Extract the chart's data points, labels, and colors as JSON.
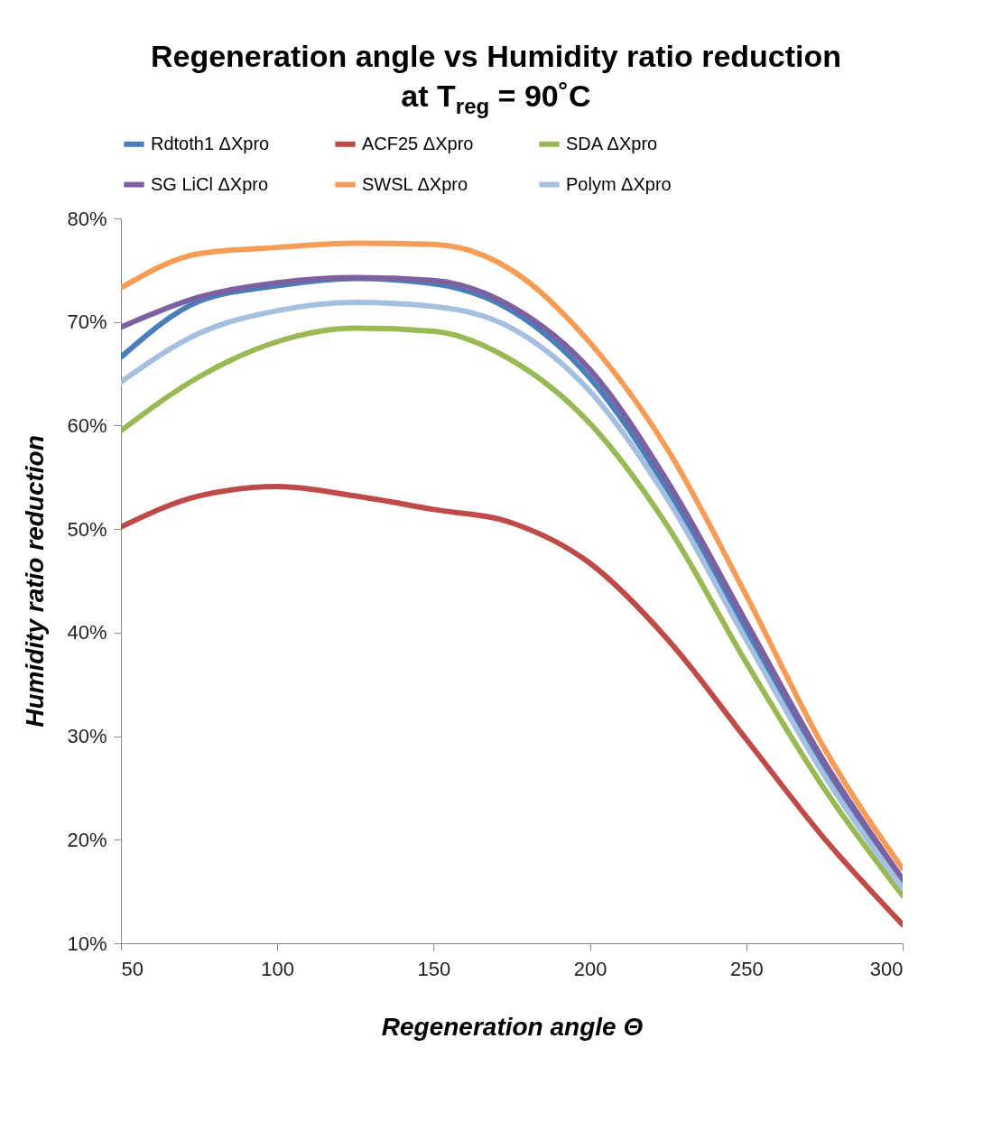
{
  "chart_data": {
    "type": "line",
    "title": "Regeneration angle vs Humidity ratio reduction",
    "subtitle": "at T$_{reg}$ = 90˚C",
    "xlabel": "Regeneration angle Θ",
    "ylabel": "Humidity ratio reduction",
    "x": [
      50,
      75,
      100,
      125,
      150,
      175,
      200,
      225,
      250,
      275,
      300
    ],
    "series": [
      {
        "name": "Rdtoth1 ΔXpro",
        "color": "#4a7ebb",
        "values": [
          66.6,
          72,
          73.5,
          74.2,
          73.7,
          71.1,
          64.6,
          53.7,
          40.2,
          26.8,
          15.8
        ]
      },
      {
        "name": "ACF25 ΔXpro",
        "color": "#be4b48",
        "values": [
          50.2,
          53.2,
          54.1,
          53.2,
          51.9,
          50.6,
          46.7,
          39.3,
          29.7,
          20.1,
          11.8
        ]
      },
      {
        "name": "SDA ΔXpro",
        "color": "#98b954",
        "values": [
          59.5,
          64.7,
          68.1,
          69.4,
          69.1,
          66.3,
          60.2,
          50.2,
          37.1,
          24.9,
          14.6
        ]
      },
      {
        "name": "SG LiCl ΔXpro",
        "color": "#7d60a0",
        "values": [
          69.5,
          72.4,
          73.8,
          74.3,
          74,
          71.5,
          65.4,
          54.5,
          41,
          27.5,
          16.2
        ]
      },
      {
        "name": "SWSL ΔXpro",
        "color": "#f59d56",
        "values": [
          73.3,
          76.6,
          77.2,
          77.6,
          77.5,
          75,
          68,
          57.6,
          43.6,
          28.8,
          17.2
        ]
      },
      {
        "name": "Polym ΔXpro",
        "color": "#a5bfe0",
        "values": [
          64.2,
          68.9,
          71.1,
          71.9,
          71.5,
          69.4,
          63.3,
          52.8,
          39.3,
          26.2,
          15.3
        ]
      }
    ],
    "xlim": [
      50,
      300
    ],
    "xticks": [
      50,
      100,
      150,
      200,
      250,
      300
    ],
    "ylim": [
      10,
      80
    ],
    "yticks": [
      {
        "value": 10,
        "label": "10%"
      },
      {
        "value": 20,
        "label": "20%"
      },
      {
        "value": 30,
        "label": "30%"
      },
      {
        "value": 40,
        "label": "40%"
      },
      {
        "value": 50,
        "label": "50%"
      },
      {
        "value": 60,
        "label": "60%"
      },
      {
        "value": 70,
        "label": "70%"
      },
      {
        "value": 80,
        "label": "80%"
      }
    ],
    "grid": false,
    "legend": "top",
    "marker": "none",
    "line_style": "solid"
  }
}
